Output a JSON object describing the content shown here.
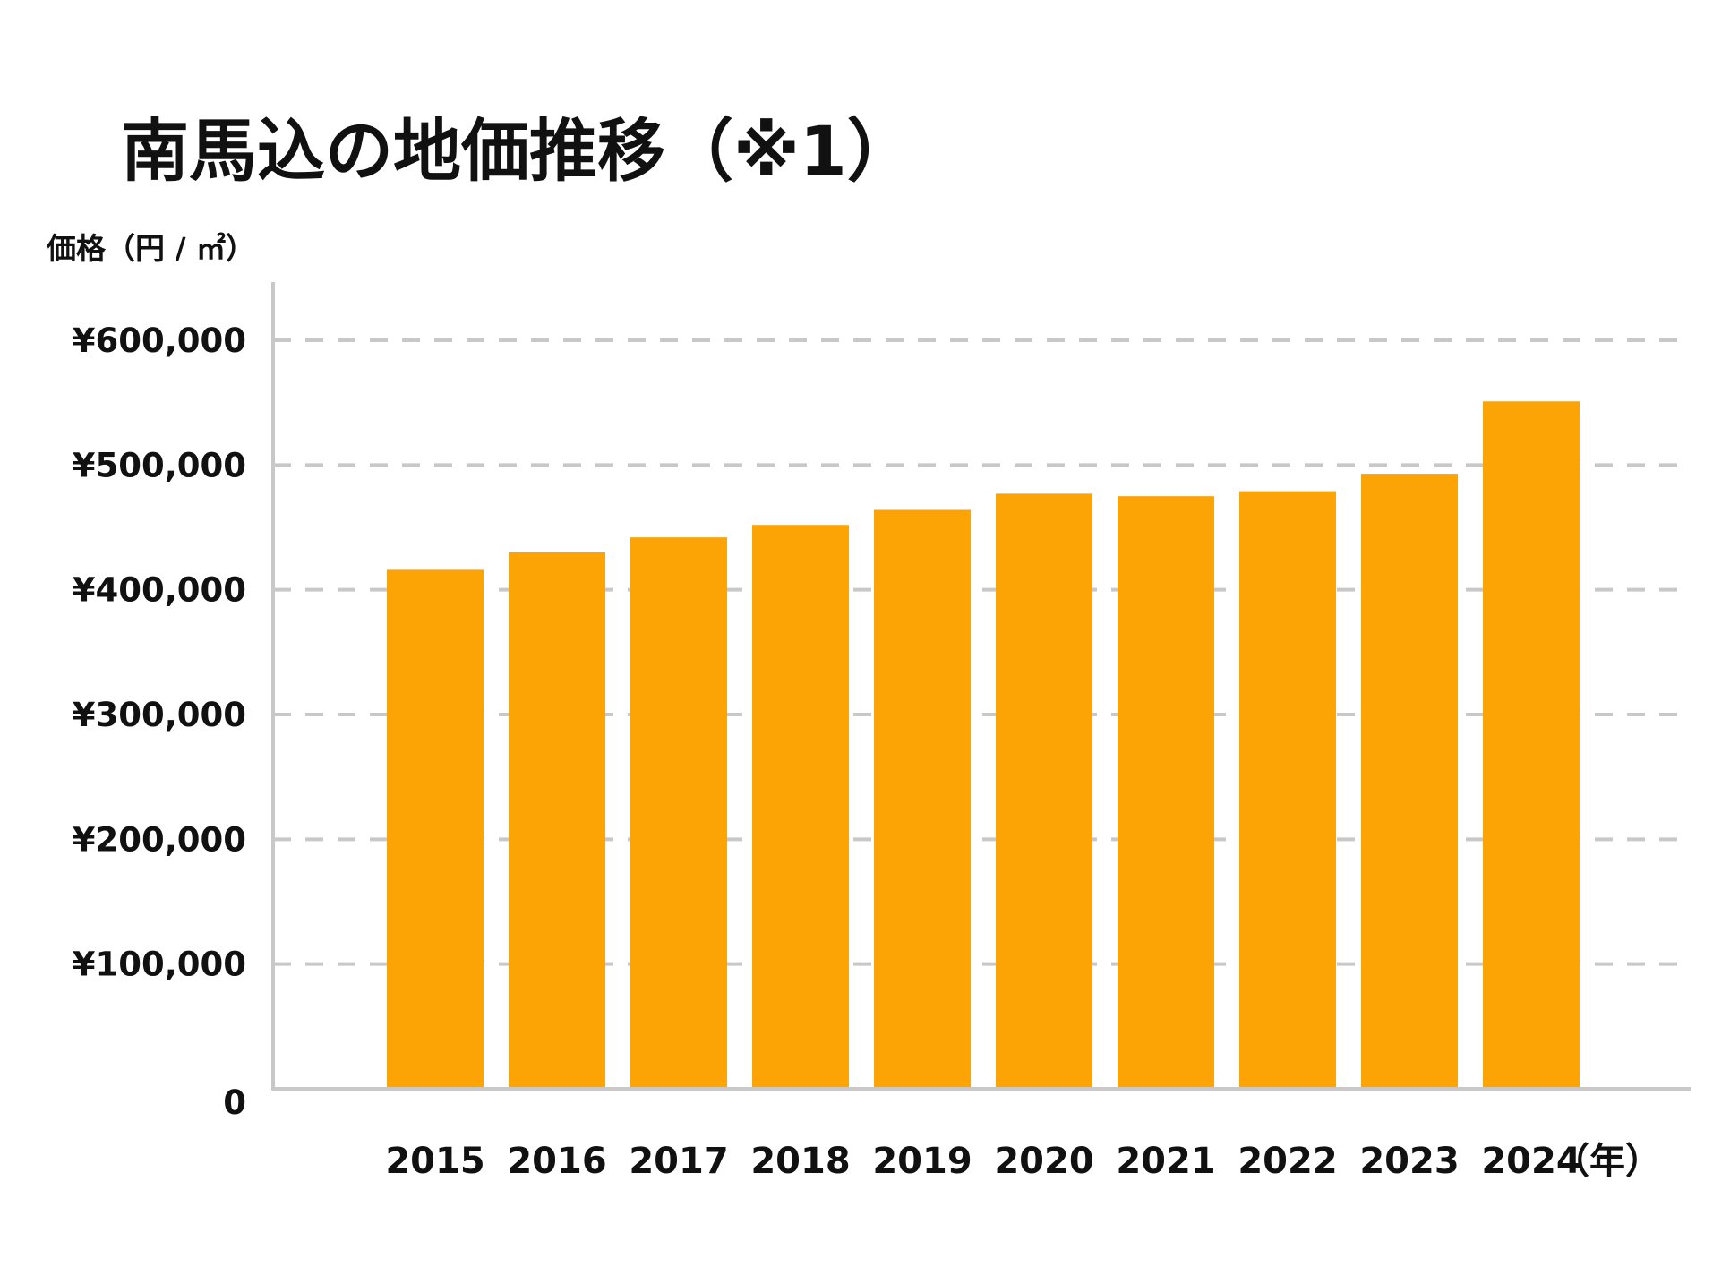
{
  "chart_data": {
    "type": "bar",
    "title": "南馬込の地価推移（※1）",
    "ylabel": "価格（円 / ㎡）",
    "xlabel": "（年）",
    "categories": [
      "2015",
      "2016",
      "2017",
      "2018",
      "2019",
      "2020",
      "2021",
      "2022",
      "2023",
      "2024"
    ],
    "values": [
      416000,
      430000,
      442000,
      452000,
      464000,
      477000,
      475000,
      479000,
      493000,
      551000
    ],
    "ylim": [
      0,
      600000
    ],
    "yticks": [
      0,
      100000,
      200000,
      300000,
      400000,
      500000,
      600000
    ],
    "ytick_labels": [
      "0",
      "¥100,000",
      "¥200,000",
      "¥300,000",
      "¥400,000",
      "¥500,000",
      "¥600,000"
    ],
    "grid": true,
    "colors": {
      "bar": "#fca306",
      "grid": "#c8c8c8",
      "axis": "#c8c8c8",
      "text": "#111111"
    }
  }
}
